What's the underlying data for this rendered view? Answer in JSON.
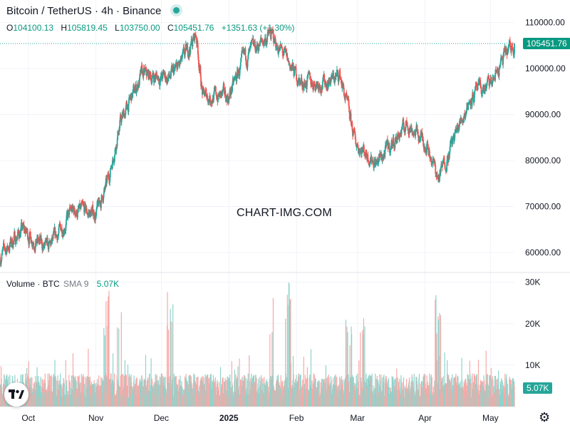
{
  "header": {
    "title": "Bitcoin / TetherUS · 4h · Binance",
    "ohlc": {
      "o_label": "O",
      "o": "104100.13",
      "h_label": "H",
      "h": "105819.45",
      "l_label": "L",
      "l": "103750.00",
      "c_label": "C",
      "c": "105451.76",
      "change": "+1351.63 (+1.30%)"
    }
  },
  "volume_header": {
    "label": "Volume · BTC",
    "sma": "SMA 9",
    "value": "5.07K"
  },
  "watermark": "CHART-IMG.COM",
  "price_tag": "105451.76",
  "volume_tag": "5.07K",
  "colors": {
    "up": "#26a69a",
    "down": "#ef5350",
    "up_volume": "#8fd3cb",
    "down_volume": "#f7a9a7",
    "live_dot": "#26a69a",
    "grid": "#f0f3fa"
  },
  "icons": {
    "logo": "tradingview-logo-icon",
    "settings": "gear-icon"
  },
  "chart_data": [
    {
      "type": "candlestick",
      "title": "Bitcoin / TetherUS · 4h · Binance",
      "timeframe": "4h",
      "x_ticks": [
        "Oct",
        "Nov",
        "Dec",
        "2025",
        "Feb",
        "Mar",
        "Apr",
        "May"
      ],
      "y_ticks": [
        "110000.00",
        "100000.00",
        "90000.00",
        "80000.00",
        "70000.00",
        "60000.00"
      ],
      "ylim": [
        55800,
        111500
      ],
      "grid": true,
      "last": {
        "open": 104100.13,
        "high": 105819.45,
        "low": 103750.0,
        "close": 105451.76,
        "change": 1351.63,
        "change_pct": 1.3
      },
      "series": [
        {
          "dates": [
            "2024-09-18",
            "2024-09-28",
            "2024-10-10",
            "2024-10-21",
            "2024-11-01",
            "2024-11-06",
            "2024-11-12",
            "2024-11-22",
            "2024-12-05",
            "2024-12-10",
            "2024-12-17",
            "2024-12-20",
            "2025-01-01",
            "2025-01-08",
            "2025-01-20",
            "2025-01-28",
            "2025-02-03",
            "2025-02-14",
            "2025-02-21",
            "2025-02-28",
            "2025-03-10",
            "2025-03-24",
            "2025-04-02",
            "2025-04-07",
            "2025-04-14",
            "2025-04-22",
            "2025-05-01",
            "2025-05-08",
            "2025-05-12"
          ],
          "values": [
            59000,
            65000,
            60500,
            69000,
            68500,
            74500,
            88000,
            98500,
            98000,
            101000,
            107500,
            94000,
            94000,
            102000,
            107500,
            101500,
            97000,
            97000,
            98500,
            84000,
            79500,
            88000,
            83500,
            76000,
            84500,
            94000,
            96500,
            103000,
            105451.76
          ]
        }
      ]
    },
    {
      "type": "bar",
      "title": "Volume · BTC",
      "indicator": "SMA 9",
      "last_value": "5.07K",
      "y_ticks": [
        "30K",
        "20K",
        "10K"
      ],
      "ylim": [
        0,
        32000
      ],
      "typical_range": [
        2000,
        8000
      ],
      "spikes": [
        {
          "date": "2024-11-06",
          "value": 30000
        },
        {
          "date": "2024-11-12",
          "value": 28000
        },
        {
          "date": "2024-12-05",
          "value": 30000
        },
        {
          "date": "2025-01-20",
          "value": 27000
        },
        {
          "date": "2025-01-28",
          "value": 30000
        },
        {
          "date": "2025-02-25",
          "value": 24000
        },
        {
          "date": "2025-03-03",
          "value": 30000
        },
        {
          "date": "2025-04-07",
          "value": 28000
        }
      ],
      "ma_period": 9
    }
  ]
}
